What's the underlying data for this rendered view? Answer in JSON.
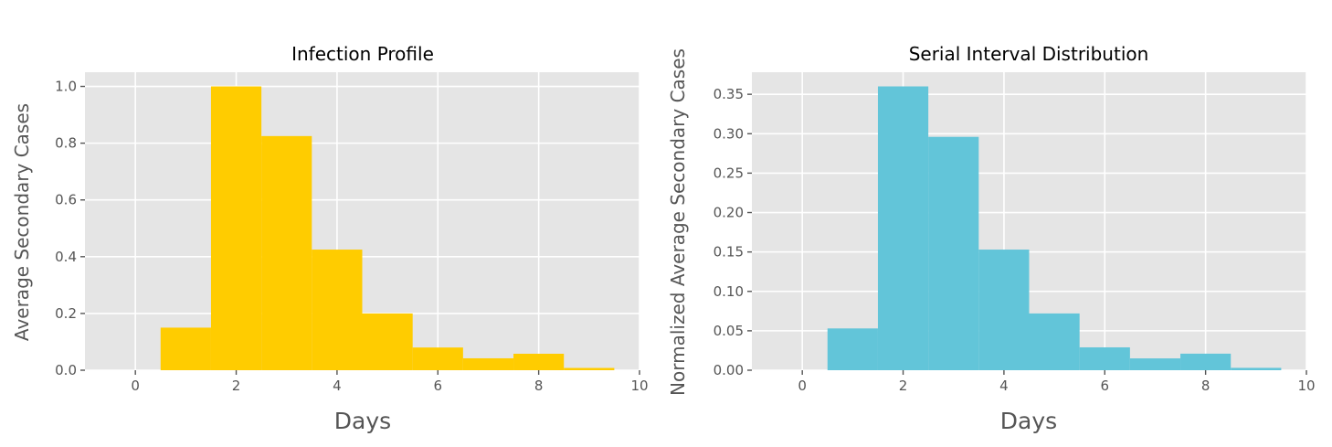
{
  "chart_data": [
    {
      "type": "bar",
      "title": "Infection Profile",
      "xlabel": "Days",
      "ylabel": "Average Secondary Cases",
      "color": "#ffcc00",
      "x": [
        1,
        2,
        3,
        4,
        5,
        6,
        7,
        8,
        9
      ],
      "values": [
        0.15,
        1.0,
        0.825,
        0.425,
        0.2,
        0.08,
        0.042,
        0.058,
        0.008
      ],
      "bar_width": 1,
      "xlim": [
        -1,
        10
      ],
      "ylim": [
        0,
        1.05
      ],
      "xticks": [
        "0",
        "2",
        "4",
        "6",
        "8",
        "10"
      ],
      "xtick_values": [
        0,
        2,
        4,
        6,
        8,
        10
      ],
      "yticks": [
        "0.0",
        "0.2",
        "0.4",
        "0.6",
        "0.8",
        "1.0"
      ],
      "ytick_values": [
        0,
        0.2,
        0.4,
        0.6,
        0.8,
        1.0
      ],
      "grid": true
    },
    {
      "type": "bar",
      "title": "Serial Interval Distribution",
      "xlabel": "Days",
      "ylabel": "Normalized Average Secondary Cases",
      "color": "#62c5d9",
      "x": [
        1,
        2,
        3,
        4,
        5,
        6,
        7,
        8,
        9
      ],
      "values": [
        0.053,
        0.36,
        0.296,
        0.153,
        0.072,
        0.029,
        0.015,
        0.021,
        0.003
      ],
      "bar_width": 1,
      "xlim": [
        -1,
        10
      ],
      "ylim": [
        0,
        0.378
      ],
      "xticks": [
        "0",
        "2",
        "4",
        "6",
        "8",
        "10"
      ],
      "xtick_values": [
        0,
        2,
        4,
        6,
        8,
        10
      ],
      "yticks": [
        "0.00",
        "0.05",
        "0.10",
        "0.15",
        "0.20",
        "0.25",
        "0.30",
        "0.35"
      ],
      "ytick_values": [
        0,
        0.05,
        0.1,
        0.15,
        0.2,
        0.25,
        0.3,
        0.35
      ],
      "grid": true
    }
  ]
}
